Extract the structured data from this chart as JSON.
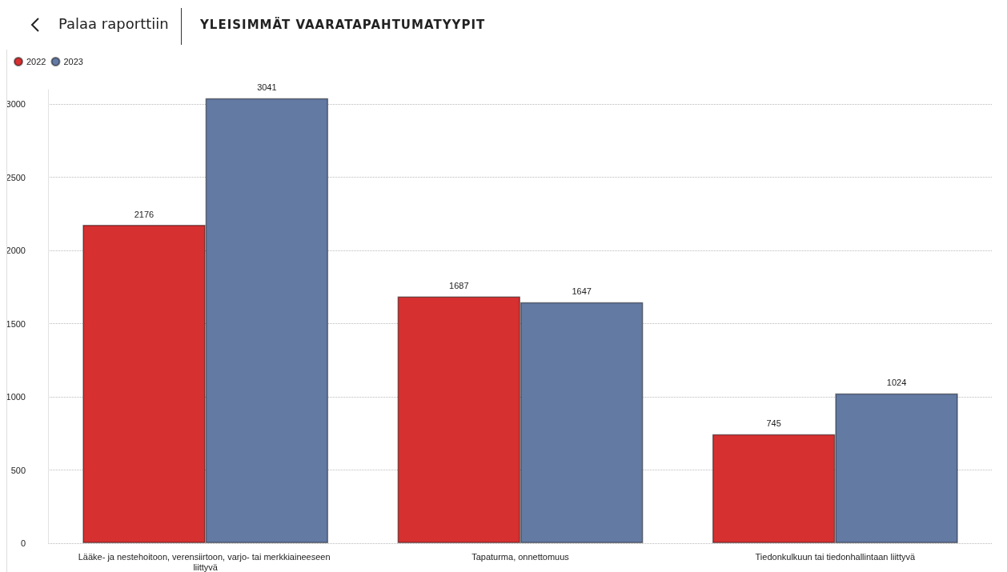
{
  "chart_data": {
    "type": "bar",
    "title": "YLEISIMMÄT VAARATAPAHTUMATYYPIT",
    "annotations": [
      "Palaa raporttiin"
    ],
    "categories": [
      "Lääke- ja nestehoitoon, verensiirtoon, varjo- tai merkkiaineeseen liittyvä",
      "Tapaturma, onnettomuus",
      "Tiedonkulkuun tai tiedonhallintaan liittyvä"
    ],
    "series": [
      {
        "name": "2022",
        "color": "#d63031",
        "values": [
          2176,
          1687,
          745
        ]
      },
      {
        "name": "2023",
        "color": "#637aa3",
        "values": [
          3041,
          1647,
          1024
        ]
      }
    ],
    "ylim": [
      0,
      3100
    ],
    "yticks": [
      0,
      500,
      1000,
      1500,
      2000,
      2500,
      3000
    ],
    "grid": "y",
    "legend": "top left",
    "data_labels": true
  }
}
